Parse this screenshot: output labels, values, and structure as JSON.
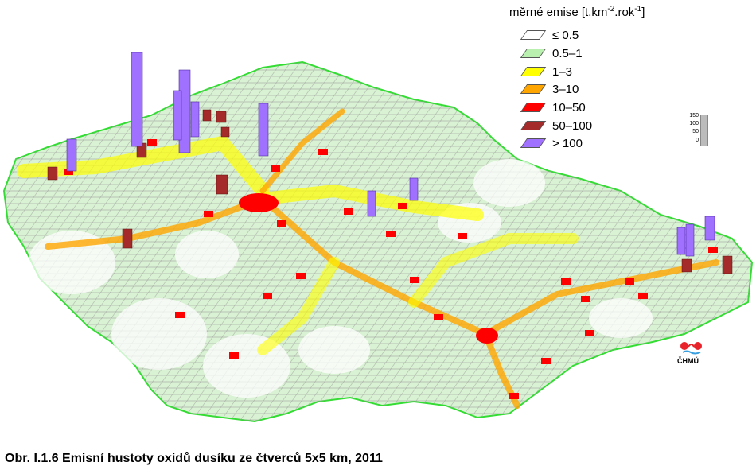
{
  "legend": {
    "title_main": "měrné emise [t.km",
    "title_sup1": "-2",
    "title_mid": ".rok",
    "title_sup2": "-1",
    "title_end": "]",
    "items": [
      {
        "label": "≤ 0.5",
        "color": "#ffffff"
      },
      {
        "label": "0.5–1",
        "color": "#b9f0b0"
      },
      {
        "label": "1–3",
        "color": "#ffff00"
      },
      {
        "label": "3–10",
        "color": "#ffa500"
      },
      {
        "label": "10–50",
        "color": "#ff0000"
      },
      {
        "label": "50–100",
        "color": "#a52a2a"
      },
      {
        "label": "> 100",
        "color": "#a070ff"
      }
    ]
  },
  "height_scale": {
    "ticks": [
      "150",
      "100",
      "50",
      "0"
    ]
  },
  "logo": {
    "text": "ČHMÚ",
    "color": "#e8242a"
  },
  "caption": "Obr. I.1.6  Emisní hustoty oxidů dusíku ze čtverců 5x5 km, 2011"
}
